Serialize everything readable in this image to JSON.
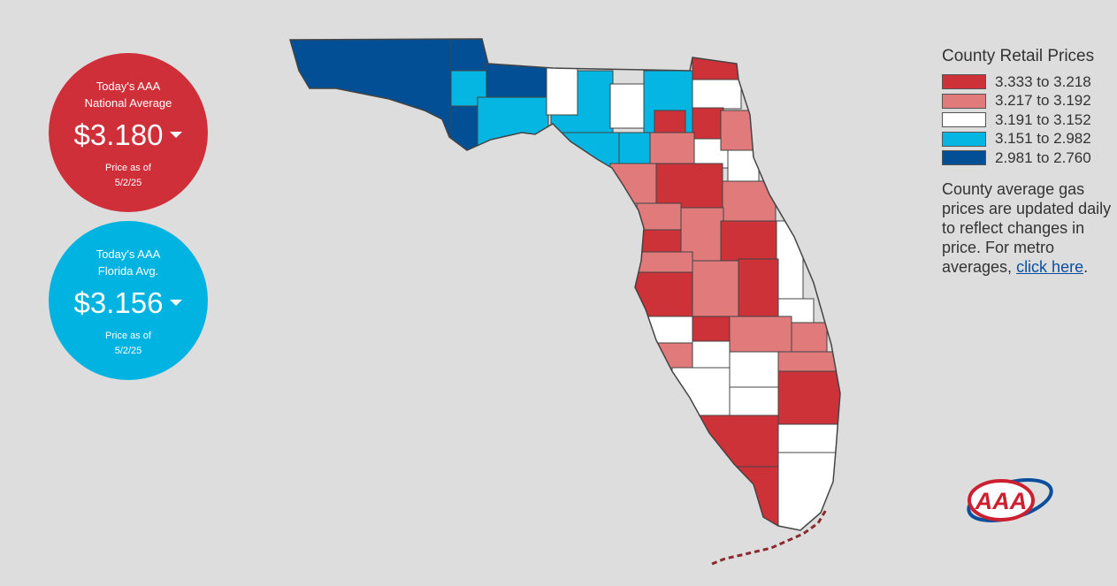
{
  "national": {
    "title_line1": "Today's AAA",
    "title_line2": "National Average",
    "price": "$3.180",
    "asof_label": "Price as of",
    "asof_date": "5/2/25",
    "color": "#cf2f39"
  },
  "florida": {
    "title_line1": "Today's AAA",
    "title_line2": "Florida Avg.",
    "price": "$3.156",
    "asof_label": "Price as of",
    "asof_date": "5/2/25",
    "color": "#00b3e0"
  },
  "legend": {
    "title": "County Retail Prices",
    "bins": [
      {
        "range": "3.333 to 3.218",
        "color": "#cc3238"
      },
      {
        "range": "3.217 to 3.192",
        "color": "#e07a7b"
      },
      {
        "range": "3.191 to 3.152",
        "color": "#ffffff"
      },
      {
        "range": "3.151 to 2.982",
        "color": "#05b5e2"
      },
      {
        "range": "2.981 to 2.760",
        "color": "#024f95"
      }
    ]
  },
  "note": {
    "text": "County average gas prices are updated daily to reflect changes in price. For metro averages, ",
    "link": "click here",
    "end": "."
  },
  "logo": {
    "text": "AAA"
  }
}
